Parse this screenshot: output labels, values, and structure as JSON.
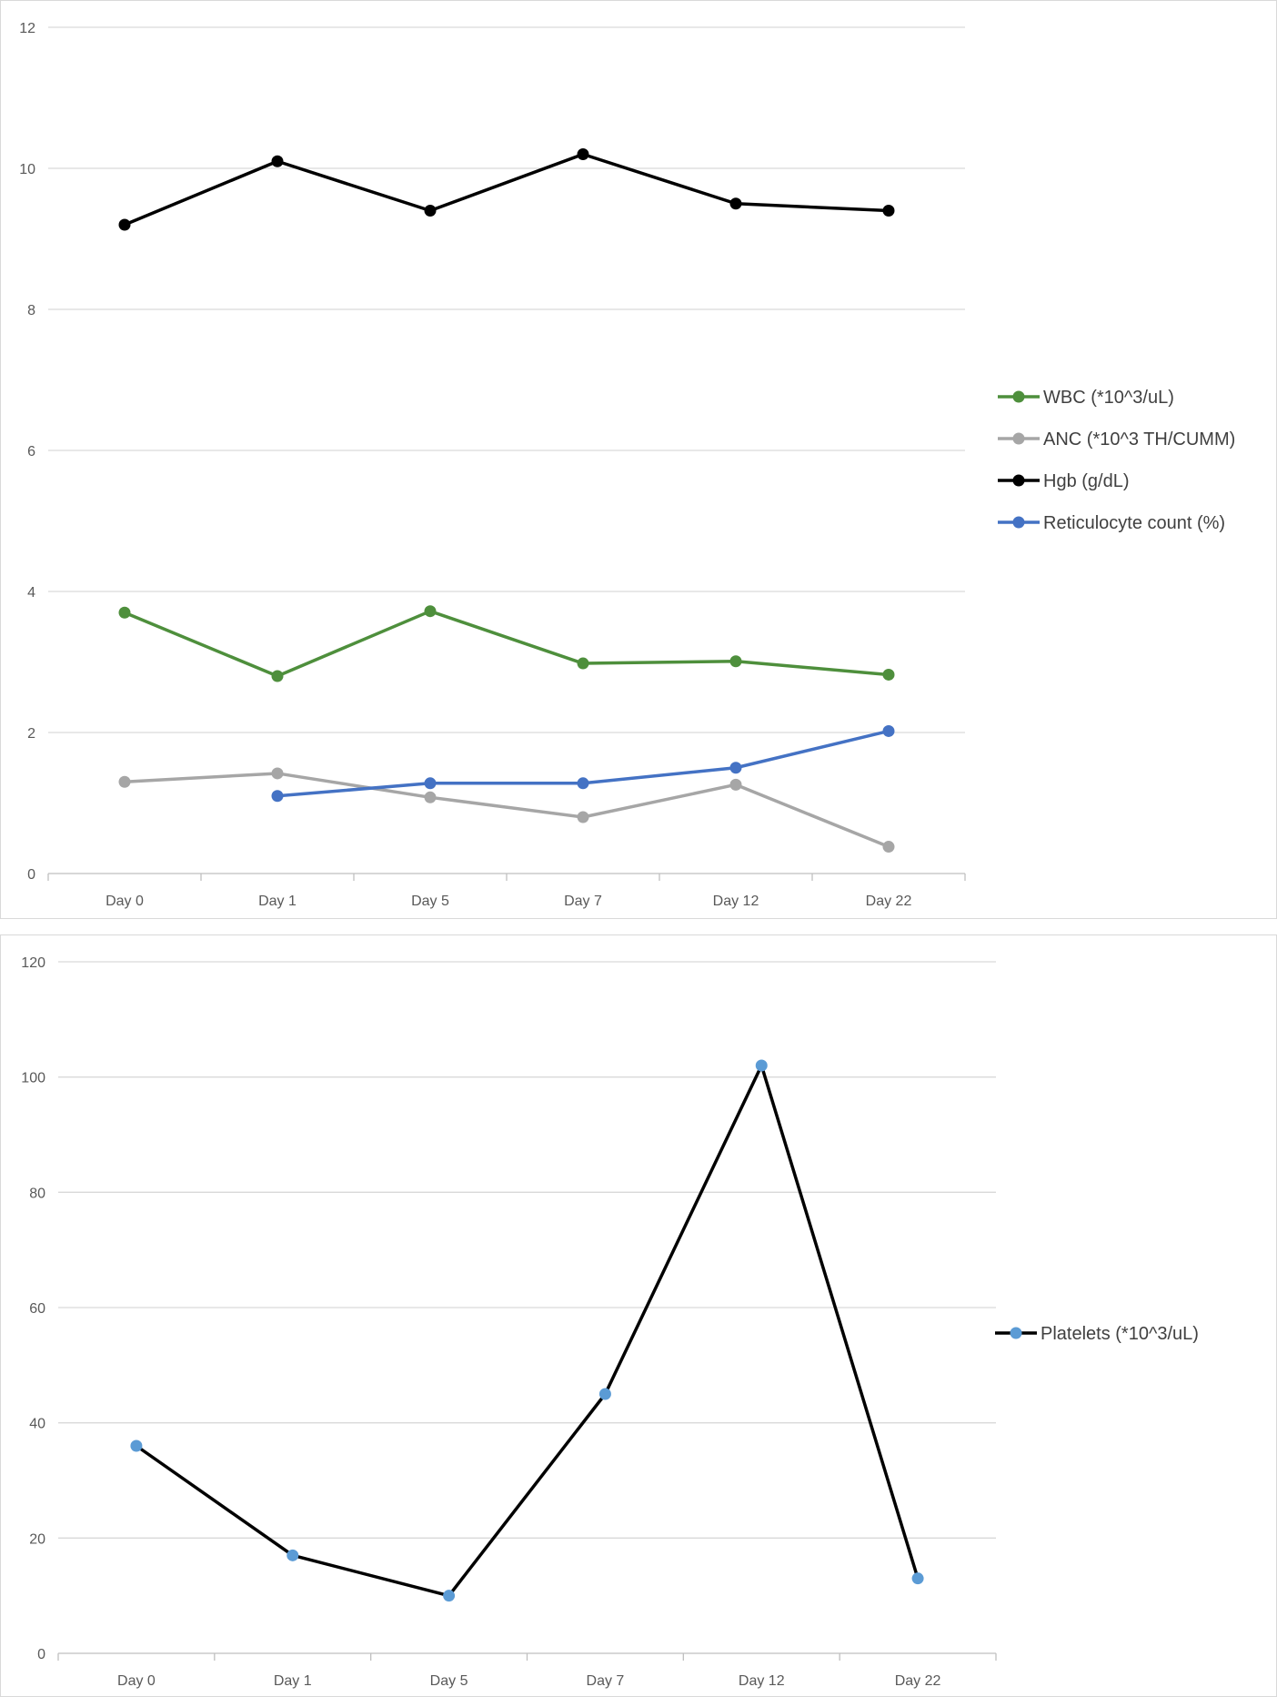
{
  "chart_data": [
    {
      "type": "line",
      "categories": [
        "Day 0",
        "Day 1",
        "Day 5",
        "Day 7",
        "Day 12",
        "Day 22"
      ],
      "ylim": [
        0,
        12
      ],
      "yticks": [
        0,
        2,
        4,
        6,
        8,
        10,
        12
      ],
      "grid": true,
      "legend_position": "right",
      "series": [
        {
          "name": "WBC (*10^3/uL)",
          "color": "#4e8f3c",
          "values": [
            3.7,
            2.8,
            3.72,
            2.98,
            3.01,
            2.82
          ]
        },
        {
          "name": "ANC (*10^3 TH/CUMM)",
          "color": "#a6a6a6",
          "values": [
            1.3,
            1.42,
            1.08,
            0.8,
            1.26,
            0.38
          ]
        },
        {
          "name": "Hgb (g/dL)",
          "color": "#000000",
          "values": [
            9.2,
            10.1,
            9.4,
            10.2,
            9.5,
            9.4
          ]
        },
        {
          "name": "Reticulocyte count (%)",
          "color": "#4472c4",
          "values": [
            null,
            1.1,
            1.28,
            1.28,
            1.5,
            2.02
          ]
        }
      ]
    },
    {
      "type": "line",
      "categories": [
        "Day 0",
        "Day 1",
        "Day 5",
        "Day 7",
        "Day 12",
        "Day 22"
      ],
      "ylim": [
        0,
        120
      ],
      "yticks": [
        0,
        20,
        40,
        60,
        80,
        100,
        120
      ],
      "grid": true,
      "legend_position": "right",
      "series": [
        {
          "name": "Platelets (*10^3/uL)",
          "color": "#000000",
          "marker_color": "#5b9bd5",
          "values": [
            36,
            17,
            10,
            45,
            102,
            13
          ]
        }
      ]
    }
  ]
}
